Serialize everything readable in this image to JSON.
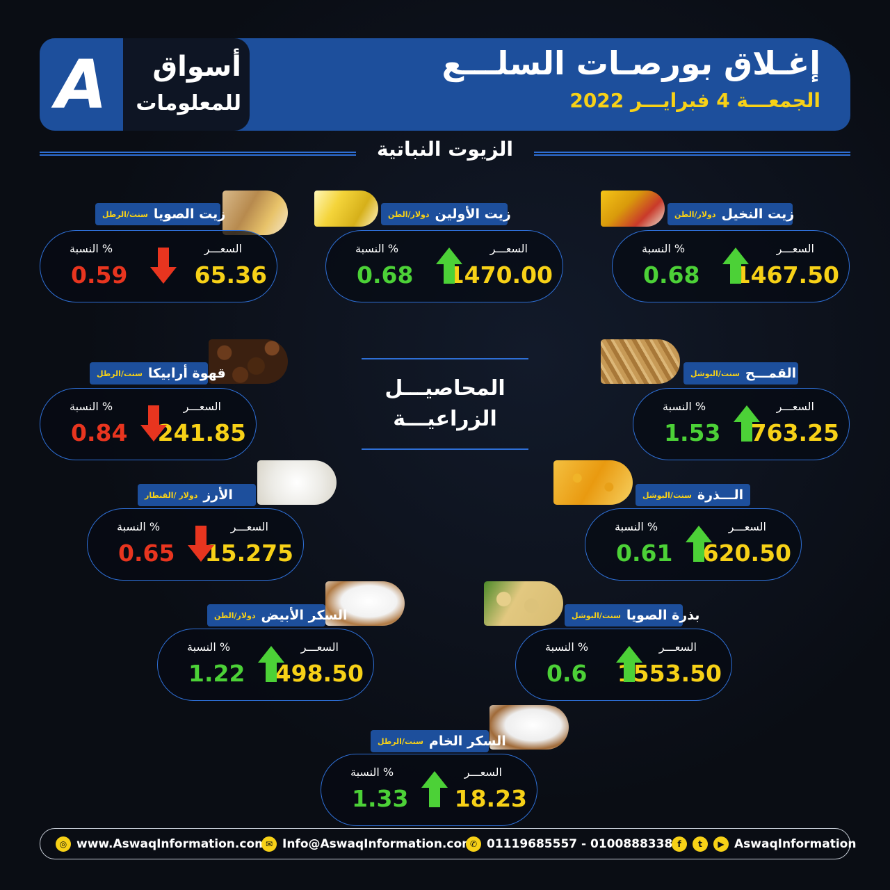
{
  "brand": {
    "line1": "أسواق",
    "line2": "للمعلومات",
    "mark": "A"
  },
  "header": {
    "title": "إغـلاق بورصـات السلـــع",
    "date": "الجمعـــة 4 فبرايـــر 2022"
  },
  "sections": {
    "oils": "الزيوت النباتية",
    "agri_line1": "المحاصيـــل",
    "agri_line2": "الزراعيـــة"
  },
  "labels": {
    "price": "السعـــر",
    "percent": "النسبة %"
  },
  "colors": {
    "up": "#4cd137",
    "down": "#e8351f",
    "price": "#f7d117",
    "accent": "#1d4f9c"
  },
  "items": {
    "palm": {
      "name": "زيت النخيل",
      "unit": "دولار/الطن",
      "price": "1467.50",
      "pct": "0.68",
      "dir": "up",
      "img": "palm-oil-image"
    },
    "olive": {
      "name": "زيت الأولين",
      "unit": "دولار/الطن",
      "price": "1470.00",
      "pct": "0.68",
      "dir": "up",
      "img": "olein-oil-image"
    },
    "soyoil": {
      "name": "زيت الصويا",
      "unit": "سنت/الرطل",
      "price": "65.36",
      "pct": "0.59",
      "dir": "down",
      "img": "soy-oil-image"
    },
    "wheat": {
      "name": "القمـــح",
      "unit": "سنت/البوشل",
      "price": "763.25",
      "pct": "1.53",
      "dir": "up",
      "img": "wheat-image"
    },
    "coffee": {
      "name": "قهوة أرابيكا",
      "unit": "سنت/الرطل",
      "price": "241.85",
      "pct": "0.84",
      "dir": "down",
      "img": "coffee-image"
    },
    "corn": {
      "name": "الـــذرة",
      "unit": "سنت/البوشل",
      "price": "620.50",
      "pct": "0.61",
      "dir": "up",
      "img": "corn-image"
    },
    "rice": {
      "name": "الأرز",
      "unit": "دولار /القنطار",
      "price": "15.275",
      "pct": "0.65",
      "dir": "down",
      "img": "rice-image"
    },
    "soybean": {
      "name": "بذرة الصويا",
      "unit": "سنت/البوشل",
      "price": "1553.50",
      "pct": "0.6",
      "dir": "up",
      "img": "soybean-image"
    },
    "whitesugar": {
      "name": "السكر الأبيض",
      "unit": "دولار/الطن",
      "price": "498.50",
      "pct": "1.22",
      "dir": "up",
      "img": "white-sugar-image"
    },
    "rawsugar": {
      "name": "السكر الخام",
      "unit": "سنت/الرطل",
      "price": "18.23",
      "pct": "1.33",
      "dir": "up",
      "img": "raw-sugar-image"
    }
  },
  "footer": {
    "website": "www.AswaqInformation.com",
    "email": "Info@AswaqInformation.com",
    "phones": "01119685557  -  01008883384",
    "social": "AswaqInformation"
  }
}
